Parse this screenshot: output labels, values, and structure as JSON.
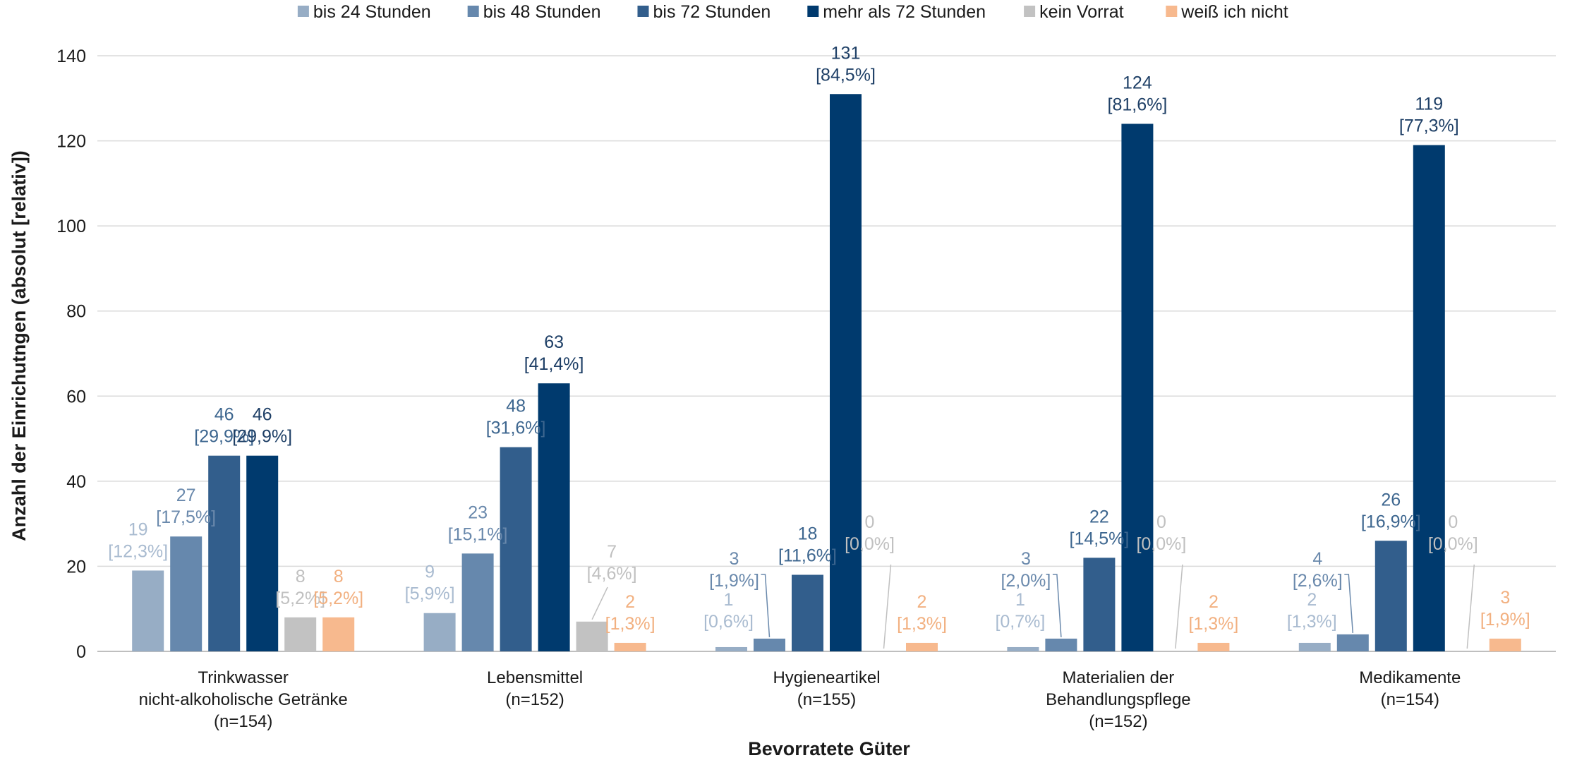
{
  "chart_data": {
    "type": "bar",
    "xlabel": "Bevorratete Güter",
    "ylabel": "Anzahl der Einrichutngen (absolut [relativ])",
    "ylim": [
      0,
      140
    ],
    "yticks": [
      0,
      20,
      40,
      60,
      80,
      100,
      120,
      140
    ],
    "grid": true,
    "legend_position": "top",
    "categories": [
      [
        "Trinkwasser",
        "nicht-alkoholische Getränke",
        "(n=154)"
      ],
      [
        "Lebensmittel",
        "(n=152)"
      ],
      [
        "Hygieneartikel",
        "(n=155)"
      ],
      [
        "Materialien der",
        "Behandlungspflege",
        "(n=152)"
      ],
      [
        "Medikamente",
        "(n=154)"
      ]
    ],
    "series": [
      {
        "name": "bis 24 Stunden",
        "color": "#97adc5",
        "values": [
          19,
          9,
          1,
          1,
          2
        ],
        "percent": [
          "[12,3%]",
          "[5,9%]",
          "[0,6%]",
          "[0,7%]",
          "[1,3%]"
        ]
      },
      {
        "name": "bis 48 Stunden",
        "color": "#6688ad",
        "values": [
          27,
          23,
          3,
          3,
          4
        ],
        "percent": [
          "[17,5%]",
          "[15,1%]",
          "[1,9%]",
          "[2,0%]",
          "[2,6%]"
        ]
      },
      {
        "name": "bis 72 Stunden",
        "color": "#325e8c",
        "values": [
          46,
          48,
          18,
          22,
          26
        ],
        "percent": [
          "[29,9%]",
          "[31,6%]",
          "[11,6%]",
          "[14,5%]",
          "[16,9%]"
        ]
      },
      {
        "name": "mehr als 72 Stunden",
        "color": "#003a6e",
        "values": [
          46,
          63,
          131,
          124,
          119
        ],
        "percent": [
          "[29,9%]",
          "[41,4%]",
          "[84,5%]",
          "[81,6%]",
          "[77,3%]"
        ]
      },
      {
        "name": "kein Vorrat",
        "color": "#c2c2c2",
        "values": [
          8,
          7,
          0,
          0,
          0
        ],
        "percent": [
          "[5,2%]",
          "[4,6%]",
          "[0,0%]",
          "[0,0%]",
          "[0,0%]"
        ]
      },
      {
        "name": "weiß ich nicht",
        "color": "#f7b98e",
        "values": [
          8,
          2,
          2,
          2,
          3
        ],
        "percent": [
          "[5,2%]",
          "[1,3%]",
          "[1,3%]",
          "[1,3%]",
          "[1,9%]"
        ]
      }
    ]
  }
}
